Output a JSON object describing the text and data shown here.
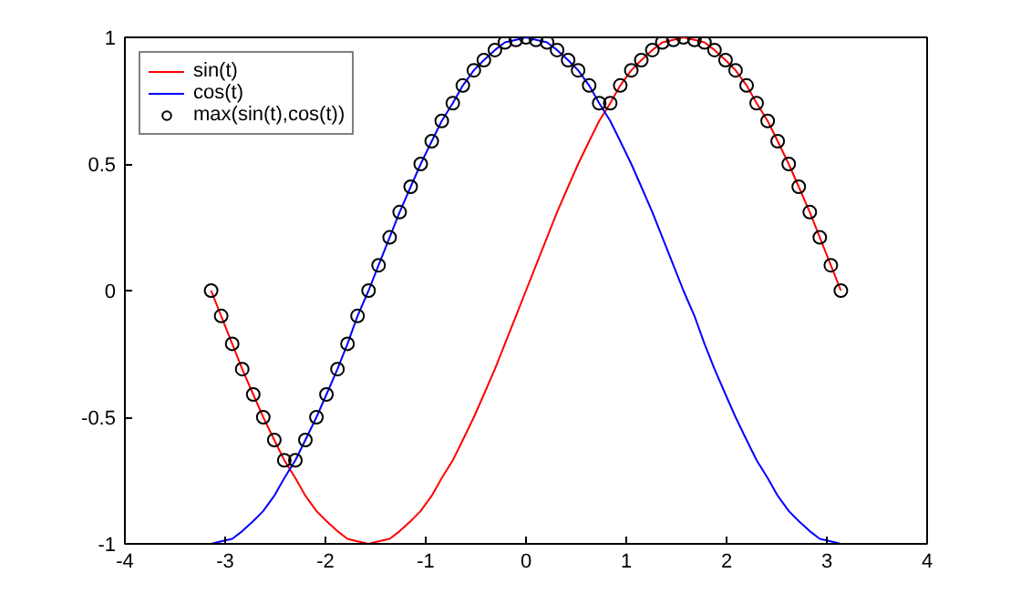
{
  "chart_data": {
    "type": "line",
    "x": [
      -3.14,
      -3.04,
      -2.93,
      -2.83,
      -2.72,
      -2.62,
      -2.51,
      -2.41,
      -2.3,
      -2.2,
      -2.09,
      -1.99,
      -1.88,
      -1.78,
      -1.68,
      -1.57,
      -1.47,
      -1.36,
      -1.26,
      -1.15,
      -1.05,
      -0.94,
      -0.84,
      -0.73,
      -0.63,
      -0.52,
      -0.42,
      -0.31,
      -0.21,
      -0.1,
      0,
      0.1,
      0.21,
      0.31,
      0.42,
      0.52,
      0.63,
      0.73,
      0.84,
      0.94,
      1.05,
      1.15,
      1.26,
      1.36,
      1.47,
      1.57,
      1.68,
      1.78,
      1.88,
      1.99,
      2.09,
      2.2,
      2.3,
      2.41,
      2.51,
      2.62,
      2.72,
      2.83,
      2.93,
      3.04,
      3.14
    ],
    "series": [
      {
        "name": "sin(t)",
        "color": "#ff0000",
        "values": [
          0,
          -0.1,
          -0.21,
          -0.31,
          -0.41,
          -0.5,
          -0.59,
          -0.67,
          -0.74,
          -0.81,
          -0.87,
          -0.91,
          -0.95,
          -0.98,
          -0.99,
          -1,
          -0.99,
          -0.98,
          -0.95,
          -0.91,
          -0.87,
          -0.81,
          -0.74,
          -0.67,
          -0.59,
          -0.5,
          -0.41,
          -0.31,
          -0.21,
          -0.1,
          0,
          0.1,
          0.21,
          0.31,
          0.41,
          0.5,
          0.59,
          0.67,
          0.74,
          0.81,
          0.87,
          0.91,
          0.95,
          0.98,
          0.99,
          1,
          0.99,
          0.98,
          0.95,
          0.91,
          0.87,
          0.81,
          0.74,
          0.67,
          0.59,
          0.5,
          0.41,
          0.31,
          0.21,
          0.1,
          0
        ]
      },
      {
        "name": "cos(t)",
        "color": "#0000ff",
        "values": [
          -1,
          -0.99,
          -0.98,
          -0.95,
          -0.91,
          -0.87,
          -0.81,
          -0.74,
          -0.67,
          -0.59,
          -0.5,
          -0.41,
          -0.31,
          -0.21,
          -0.1,
          0,
          0.1,
          0.21,
          0.31,
          0.41,
          0.5,
          0.59,
          0.67,
          0.74,
          0.81,
          0.87,
          0.91,
          0.95,
          0.98,
          0.99,
          1,
          0.99,
          0.98,
          0.95,
          0.91,
          0.87,
          0.81,
          0.74,
          0.67,
          0.59,
          0.5,
          0.41,
          0.31,
          0.21,
          0.1,
          0,
          -0.1,
          -0.21,
          -0.31,
          -0.41,
          -0.5,
          -0.59,
          -0.67,
          -0.74,
          -0.81,
          -0.87,
          -0.91,
          -0.95,
          -0.98,
          -0.99,
          -1
        ]
      },
      {
        "name": "max(sin(t),cos(t))",
        "type": "scatter",
        "marker": "circle",
        "color": "#000000",
        "values": [
          0,
          -0.1,
          -0.21,
          -0.31,
          -0.41,
          -0.5,
          -0.59,
          -0.67,
          -0.67,
          -0.59,
          -0.5,
          -0.41,
          -0.31,
          -0.21,
          -0.1,
          0,
          0.1,
          0.21,
          0.31,
          0.41,
          0.5,
          0.59,
          0.67,
          0.74,
          0.81,
          0.87,
          0.91,
          0.95,
          0.98,
          0.99,
          1,
          0.99,
          0.98,
          0.95,
          0.91,
          0.87,
          0.81,
          0.74,
          0.74,
          0.81,
          0.87,
          0.91,
          0.95,
          0.98,
          0.99,
          1,
          0.99,
          0.98,
          0.95,
          0.91,
          0.87,
          0.81,
          0.74,
          0.67,
          0.59,
          0.5,
          0.41,
          0.31,
          0.21,
          0.1,
          0
        ]
      }
    ],
    "xlim": [
      -4,
      4
    ],
    "ylim": [
      -1,
      1
    ],
    "xticks": [
      -4,
      -3,
      -2,
      -1,
      0,
      1,
      2,
      3,
      4
    ],
    "yticks": [
      -1,
      -0.5,
      0,
      0.5,
      1
    ],
    "grid": false,
    "legend": "top left"
  }
}
